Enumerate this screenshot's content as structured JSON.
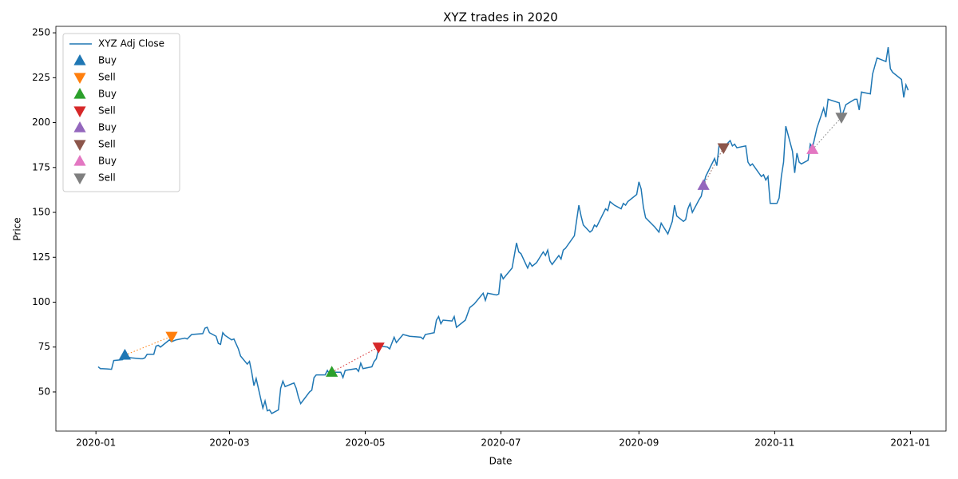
{
  "chart_data": {
    "type": "line",
    "title": "XYZ trades in 2020",
    "x_label": "Date",
    "y_label": "Price",
    "xlim": [
      "2019-12-14",
      "2021-01-17"
    ],
    "xticks": [
      {
        "value": "2020-01-01",
        "label": "2020-01"
      },
      {
        "value": "2020-03-01",
        "label": "2020-03"
      },
      {
        "value": "2020-05-01",
        "label": "2020-05"
      },
      {
        "value": "2020-07-01",
        "label": "2020-07"
      },
      {
        "value": "2020-09-01",
        "label": "2020-09"
      },
      {
        "value": "2020-11-01",
        "label": "2020-11"
      },
      {
        "value": "2021-01-01",
        "label": "2021-01"
      }
    ],
    "ylim": [
      28.2,
      253.6
    ],
    "yticks": [
      50,
      75,
      100,
      125,
      150,
      175,
      200,
      225,
      250
    ],
    "legend": "upper left",
    "trade_links": "dotted",
    "series": [
      {
        "name": "XYZ Adj Close",
        "type": "line",
        "color": "#1f77b4",
        "x": [
          "2020-01-02",
          "2020-01-03",
          "2020-01-06",
          "2020-01-08",
          "2020-01-09",
          "2020-01-13",
          "2020-01-14",
          "2020-01-17",
          "2020-01-21",
          "2020-01-22",
          "2020-01-23",
          "2020-01-24",
          "2020-01-27",
          "2020-01-28",
          "2020-01-29",
          "2020-01-30",
          "2020-02-03",
          "2020-02-04",
          "2020-02-06",
          "2020-02-10",
          "2020-02-11",
          "2020-02-13",
          "2020-02-18",
          "2020-02-19",
          "2020-02-20",
          "2020-02-21",
          "2020-02-24",
          "2020-02-25",
          "2020-02-26",
          "2020-02-27",
          "2020-02-28",
          "2020-03-02",
          "2020-03-03",
          "2020-03-05",
          "2020-03-06",
          "2020-03-09",
          "2020-03-10",
          "2020-03-11",
          "2020-03-12",
          "2020-03-13",
          "2020-03-16",
          "2020-03-17",
          "2020-03-18",
          "2020-03-19",
          "2020-03-20",
          "2020-03-23",
          "2020-03-24",
          "2020-03-25",
          "2020-03-26",
          "2020-03-30",
          "2020-03-31",
          "2020-04-01",
          "2020-04-02",
          "2020-04-06",
          "2020-04-07",
          "2020-04-08",
          "2020-04-09",
          "2020-04-13",
          "2020-04-14",
          "2020-04-15",
          "2020-04-16",
          "2020-04-17",
          "2020-04-20",
          "2020-04-21",
          "2020-04-22",
          "2020-04-27",
          "2020-04-28",
          "2020-04-29",
          "2020-04-30",
          "2020-05-04",
          "2020-05-05",
          "2020-05-06",
          "2020-05-07",
          "2020-05-08",
          "2020-05-11",
          "2020-05-12",
          "2020-05-14",
          "2020-05-15",
          "2020-05-18",
          "2020-05-21",
          "2020-05-26",
          "2020-05-27",
          "2020-05-28",
          "2020-06-01",
          "2020-06-02",
          "2020-06-03",
          "2020-06-04",
          "2020-06-05",
          "2020-06-09",
          "2020-06-10",
          "2020-06-11",
          "2020-06-15",
          "2020-06-17",
          "2020-06-19",
          "2020-06-23",
          "2020-06-24",
          "2020-06-25",
          "2020-06-29",
          "2020-06-30",
          "2020-07-01",
          "2020-07-02",
          "2020-07-06",
          "2020-07-08",
          "2020-07-09",
          "2020-07-10",
          "2020-07-13",
          "2020-07-14",
          "2020-07-15",
          "2020-07-17",
          "2020-07-20",
          "2020-07-21",
          "2020-07-22",
          "2020-07-23",
          "2020-07-24",
          "2020-07-27",
          "2020-07-28",
          "2020-07-29",
          "2020-07-30",
          "2020-08-03",
          "2020-08-05",
          "2020-08-06",
          "2020-08-07",
          "2020-08-10",
          "2020-08-11",
          "2020-08-12",
          "2020-08-13",
          "2020-08-17",
          "2020-08-18",
          "2020-08-19",
          "2020-08-21",
          "2020-08-24",
          "2020-08-25",
          "2020-08-26",
          "2020-08-27",
          "2020-08-31",
          "2020-09-01",
          "2020-09-02",
          "2020-09-03",
          "2020-09-04",
          "2020-09-08",
          "2020-09-10",
          "2020-09-11",
          "2020-09-14",
          "2020-09-16",
          "2020-09-17",
          "2020-09-18",
          "2020-09-21",
          "2020-09-22",
          "2020-09-23",
          "2020-09-24",
          "2020-09-25",
          "2020-09-28",
          "2020-09-29",
          "2020-09-30",
          "2020-10-01",
          "2020-10-05",
          "2020-10-06",
          "2020-10-07",
          "2020-10-08",
          "2020-10-09",
          "2020-10-12",
          "2020-10-13",
          "2020-10-14",
          "2020-10-15",
          "2020-10-19",
          "2020-10-20",
          "2020-10-21",
          "2020-10-22",
          "2020-10-26",
          "2020-10-27",
          "2020-10-28",
          "2020-10-29",
          "2020-10-30",
          "2020-11-02",
          "2020-11-03",
          "2020-11-04",
          "2020-11-05",
          "2020-11-06",
          "2020-11-09",
          "2020-11-10",
          "2020-11-11",
          "2020-11-12",
          "2020-11-13",
          "2020-11-16",
          "2020-11-17",
          "2020-11-18",
          "2020-11-20",
          "2020-11-23",
          "2020-11-24",
          "2020-11-25",
          "2020-11-30",
          "2020-12-01",
          "2020-12-03",
          "2020-12-07",
          "2020-12-08",
          "2020-12-09",
          "2020-12-10",
          "2020-12-14",
          "2020-12-15",
          "2020-12-17",
          "2020-12-21",
          "2020-12-22",
          "2020-12-23",
          "2020-12-24",
          "2020-12-28",
          "2020-12-29",
          "2020-12-30",
          "2020-12-31"
        ],
        "values": [
          64,
          63,
          62.8,
          62.6,
          67.5,
          68,
          69.5,
          69,
          68.5,
          68.5,
          69,
          71,
          71,
          75.5,
          76,
          75,
          79,
          78,
          79,
          80,
          79.5,
          82,
          82.5,
          85.5,
          86,
          83,
          81,
          77,
          76.5,
          83,
          81.5,
          79,
          79.5,
          74,
          70,
          65.5,
          67,
          61,
          53.5,
          57.5,
          41,
          45,
          39.5,
          40,
          38,
          40,
          52,
          56,
          53,
          55,
          52,
          47,
          43.5,
          50,
          51,
          58,
          59.5,
          59.5,
          62,
          60,
          61,
          61,
          61,
          58,
          62,
          63,
          61.5,
          66,
          63,
          64,
          67,
          68.5,
          74,
          75.5,
          75,
          74,
          80.5,
          77.5,
          82,
          81,
          80.5,
          79.5,
          82,
          83,
          90,
          92,
          88,
          90,
          89.5,
          92,
          86,
          90,
          97,
          99,
          105,
          101,
          105,
          104,
          104.5,
          116,
          113,
          119,
          133,
          128,
          127,
          119,
          122,
          120,
          122,
          128,
          126,
          129,
          123,
          121,
          126,
          124,
          129,
          130,
          137,
          154,
          148,
          143,
          139,
          140,
          143,
          142,
          152,
          151,
          156,
          154,
          152,
          155,
          154,
          156,
          160,
          167,
          163,
          153,
          147,
          142,
          139,
          144,
          138,
          145,
          154,
          148,
          145,
          146,
          152,
          155,
          150,
          157,
          159,
          165,
          170,
          180,
          176,
          187,
          187,
          186,
          190,
          187,
          188,
          186,
          187,
          178,
          176,
          177,
          170,
          171,
          168,
          170,
          155,
          155,
          158,
          170,
          178,
          198,
          184,
          172,
          183,
          178,
          177,
          179,
          188,
          186,
          197,
          208,
          203,
          213,
          211,
          203,
          210,
          213,
          213,
          207,
          217,
          216,
          227,
          236,
          234,
          242,
          230,
          228,
          224,
          214,
          221,
          218
        ]
      },
      {
        "name": "Buy",
        "type": "scatter",
        "marker": "^",
        "color": "#1f77b4",
        "x": [
          "2020-01-14"
        ],
        "values": [
          70.5
        ]
      },
      {
        "name": "Sell",
        "type": "scatter",
        "marker": "v",
        "color": "#ff7f0e",
        "x": [
          "2020-02-04"
        ],
        "values": [
          81
        ]
      },
      {
        "name": "Buy",
        "type": "scatter",
        "marker": "^",
        "color": "#2ca02c",
        "x": [
          "2020-04-16"
        ],
        "values": [
          61
        ]
      },
      {
        "name": "Sell",
        "type": "scatter",
        "marker": "v",
        "color": "#d62728",
        "x": [
          "2020-05-07"
        ],
        "values": [
          75
        ]
      },
      {
        "name": "Buy",
        "type": "scatter",
        "marker": "^",
        "color": "#9467bd",
        "x": [
          "2020-09-30"
        ],
        "values": [
          165
        ]
      },
      {
        "name": "Sell",
        "type": "scatter",
        "marker": "v",
        "color": "#8c564b",
        "x": [
          "2020-10-09"
        ],
        "values": [
          186
        ]
      },
      {
        "name": "Buy",
        "type": "scatter",
        "marker": "^",
        "color": "#e377c2",
        "x": [
          "2020-11-18"
        ],
        "values": [
          185
        ]
      },
      {
        "name": "Sell",
        "type": "scatter",
        "marker": "v",
        "color": "#7f7f7f",
        "x": [
          "2020-12-01"
        ],
        "values": [
          203
        ]
      }
    ]
  }
}
